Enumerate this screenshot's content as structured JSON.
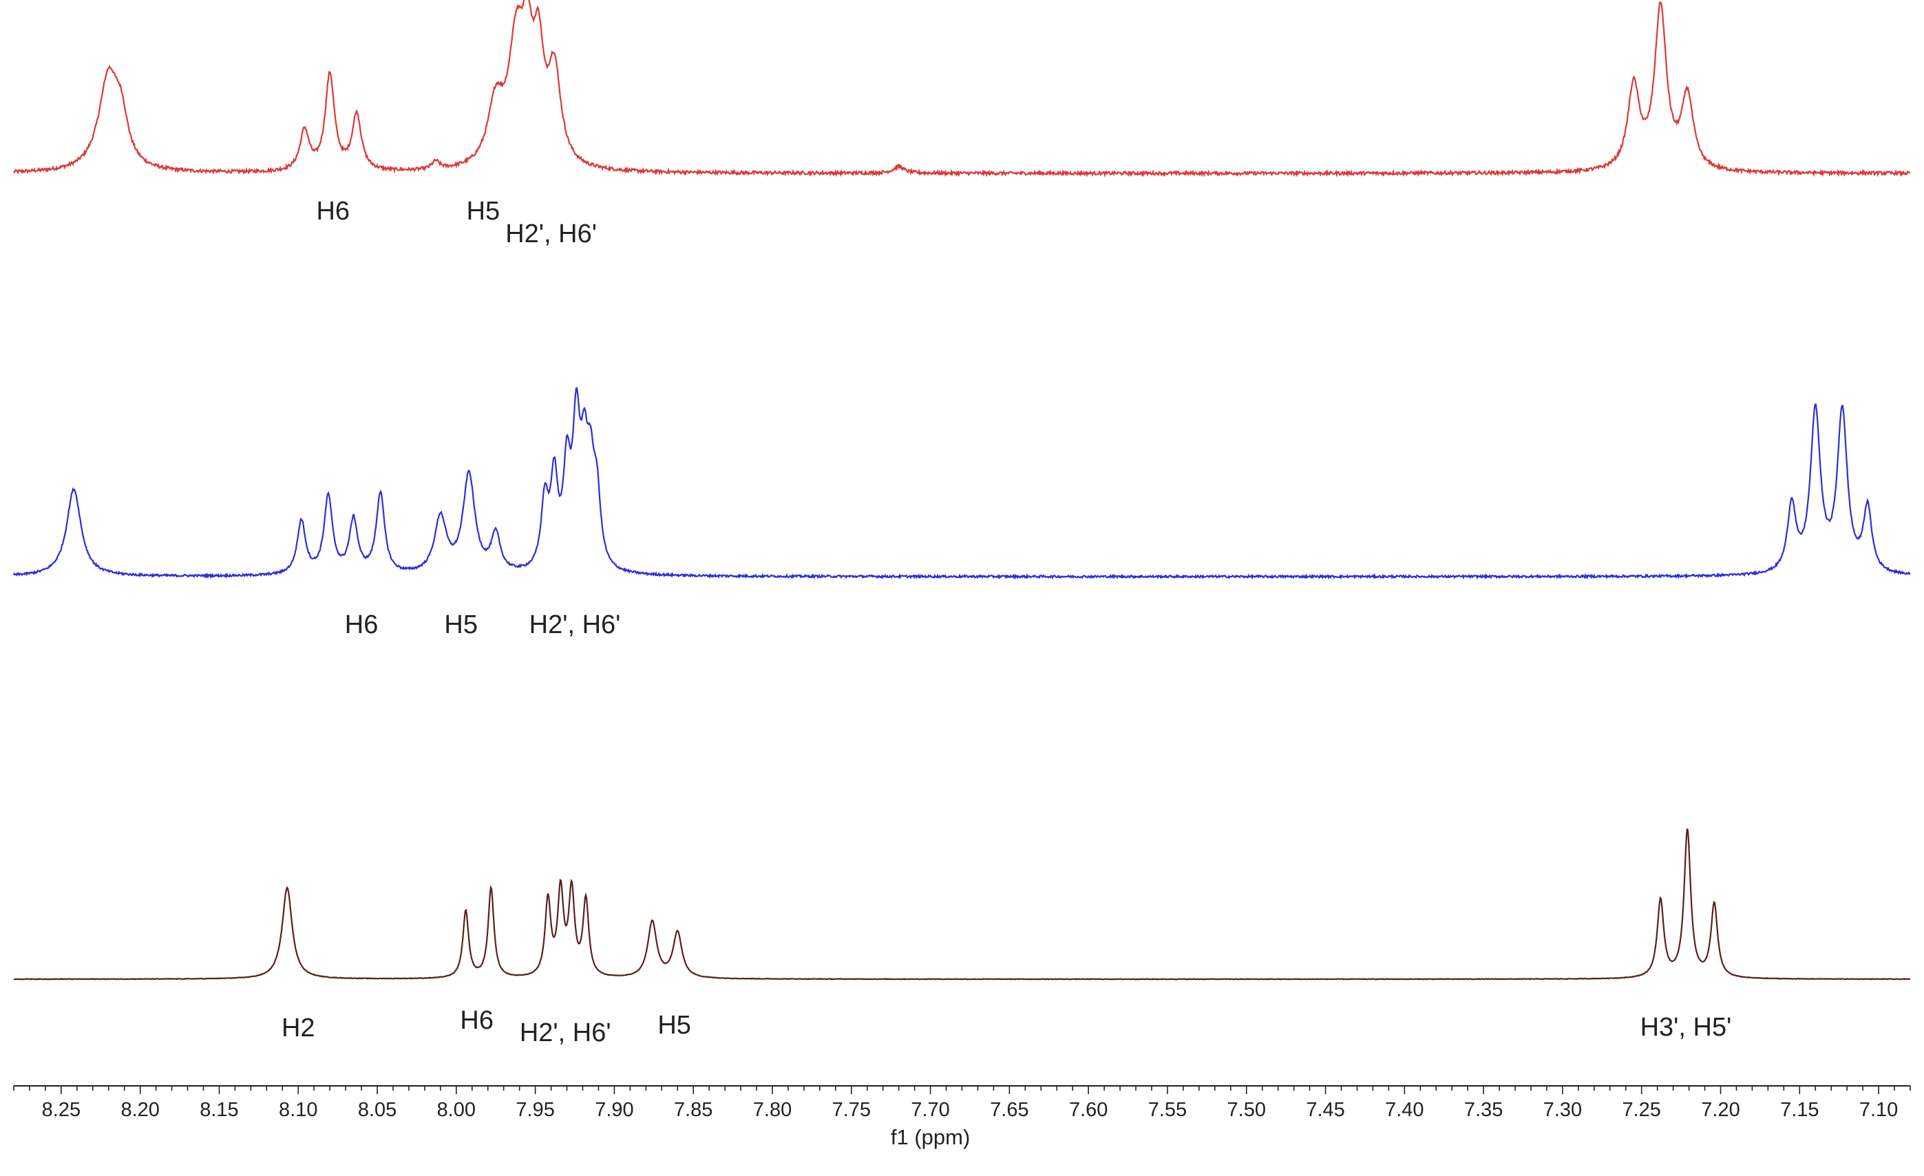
{
  "chart_data": {
    "type": "line",
    "xlabel": "f1 (ppm)",
    "xlim": [
      8.28,
      7.08
    ],
    "x_reversed": true,
    "ticks": [
      "8.25",
      "8.20",
      "8.15",
      "8.10",
      "8.05",
      "8.00",
      "7.95",
      "7.90",
      "7.85",
      "7.80",
      "7.75",
      "7.70",
      "7.65",
      "7.60",
      "7.55",
      "7.50",
      "7.45",
      "7.40",
      "7.35",
      "7.30",
      "7.25",
      "7.20",
      "7.15",
      "7.10"
    ],
    "grid": false,
    "legend": "none",
    "series": [
      {
        "color": "#d93a3a",
        "noise": 1.2,
        "peaks": [
          {
            "x": 8.22,
            "h": 70,
            "w": 0.0075
          },
          {
            "x": 8.212,
            "h": 30,
            "w": 0.005
          },
          {
            "x": 8.096,
            "h": 30,
            "w": 0.0035
          },
          {
            "x": 8.08,
            "h": 72,
            "w": 0.0035
          },
          {
            "x": 8.063,
            "h": 42,
            "w": 0.0035
          },
          {
            "x": 8.013,
            "h": 6,
            "w": 0.003
          },
          {
            "x": 7.975,
            "h": 45,
            "w": 0.006
          },
          {
            "x": 7.962,
            "h": 88,
            "w": 0.006
          },
          {
            "x": 7.955,
            "h": 70,
            "w": 0.004
          },
          {
            "x": 7.948,
            "h": 75,
            "w": 0.004
          },
          {
            "x": 7.938,
            "h": 70,
            "w": 0.005
          },
          {
            "x": 7.72,
            "h": 5,
            "w": 0.004
          },
          {
            "x": 7.255,
            "h": 62,
            "w": 0.0045
          },
          {
            "x": 7.238,
            "h": 120,
            "w": 0.0045
          },
          {
            "x": 7.221,
            "h": 55,
            "w": 0.0045
          }
        ],
        "labels": [
          {
            "text": "H6",
            "x": 8.078,
            "dy": 22
          },
          {
            "text": "H5",
            "x": 7.983,
            "dy": 22
          },
          {
            "text": "H2', H6'",
            "x": 7.94,
            "dy": 55
          }
        ]
      },
      {
        "color": "#2e2ed4",
        "noise": 0.8,
        "peaks": [
          {
            "x": 8.242,
            "h": 65,
            "w": 0.0055
          },
          {
            "x": 8.098,
            "h": 40,
            "w": 0.0032
          },
          {
            "x": 8.081,
            "h": 58,
            "w": 0.0032
          },
          {
            "x": 8.065,
            "h": 40,
            "w": 0.0032
          },
          {
            "x": 8.048,
            "h": 60,
            "w": 0.0032
          },
          {
            "x": 8.01,
            "h": 42,
            "w": 0.0045
          },
          {
            "x": 7.992,
            "h": 74,
            "w": 0.0045
          },
          {
            "x": 7.975,
            "h": 28,
            "w": 0.0035
          },
          {
            "x": 7.944,
            "h": 50,
            "w": 0.0028
          },
          {
            "x": 7.938,
            "h": 65,
            "w": 0.0028
          },
          {
            "x": 7.93,
            "h": 70,
            "w": 0.0028
          },
          {
            "x": 7.924,
            "h": 100,
            "w": 0.0028
          },
          {
            "x": 7.919,
            "h": 70,
            "w": 0.0028
          },
          {
            "x": 7.915,
            "h": 60,
            "w": 0.0028
          },
          {
            "x": 7.911,
            "h": 50,
            "w": 0.0028
          },
          {
            "x": 7.155,
            "h": 50,
            "w": 0.0032
          },
          {
            "x": 7.14,
            "h": 120,
            "w": 0.0038
          },
          {
            "x": 7.123,
            "h": 120,
            "w": 0.0038
          },
          {
            "x": 7.107,
            "h": 48,
            "w": 0.0032
          }
        ],
        "labels": [
          {
            "text": "H6",
            "x": 8.06,
            "dy": 37
          },
          {
            "text": "H5",
            "x": 7.997,
            "dy": 37
          },
          {
            "text": "H2', H6'",
            "x": 7.925,
            "dy": 37
          }
        ]
      },
      {
        "color": "#5b1f1f",
        "noise": 0.2,
        "peaks": [
          {
            "x": 8.107,
            "h": 68,
            "w": 0.0038
          },
          {
            "x": 7.994,
            "h": 50,
            "w": 0.0022
          },
          {
            "x": 7.978,
            "h": 67,
            "w": 0.0022
          },
          {
            "x": 7.942,
            "h": 57,
            "w": 0.0022
          },
          {
            "x": 7.934,
            "h": 63,
            "w": 0.0022
          },
          {
            "x": 7.927,
            "h": 63,
            "w": 0.0022
          },
          {
            "x": 7.918,
            "h": 57,
            "w": 0.0022
          },
          {
            "x": 7.876,
            "h": 42,
            "w": 0.0034
          },
          {
            "x": 7.86,
            "h": 34,
            "w": 0.0034
          },
          {
            "x": 7.238,
            "h": 58,
            "w": 0.0025
          },
          {
            "x": 7.221,
            "h": 110,
            "w": 0.0025
          },
          {
            "x": 7.204,
            "h": 55,
            "w": 0.0025
          }
        ],
        "labels": [
          {
            "text": "H2",
            "x": 8.1,
            "dy": 38
          },
          {
            "text": "H6",
            "x": 7.987,
            "dy": 27
          },
          {
            "text": "H2', H6'",
            "x": 7.931,
            "dy": 45
          },
          {
            "text": "H5",
            "x": 7.862,
            "dy": 34
          },
          {
            "text": "H3', H5'",
            "x": 7.222,
            "dy": 37
          }
        ]
      }
    ]
  }
}
